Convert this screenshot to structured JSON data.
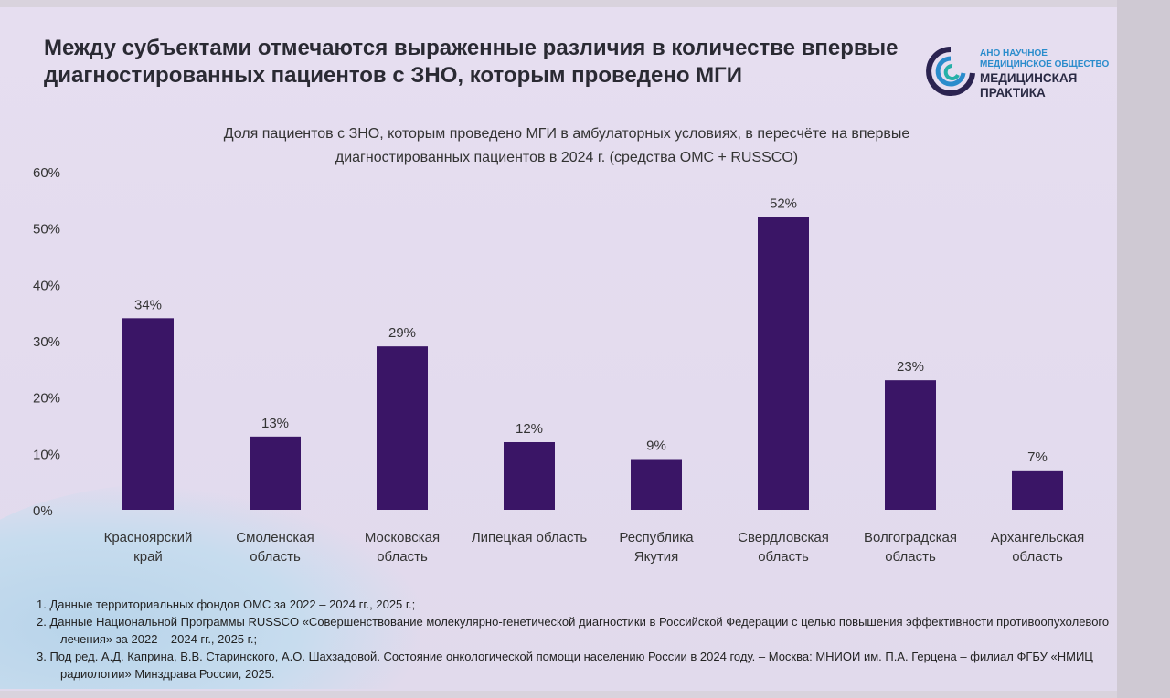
{
  "title": "Между субъектами отмечаются выраженные различия в количестве впервые диагностированных пациентов с ЗНО, которым проведено МГИ",
  "logo": {
    "line1": "АНО НАУЧНОЕ",
    "line2": "МЕДИЦИНСКОЕ ОБЩЕСТВО",
    "line3": "МЕДИЦИНСКАЯ",
    "line4": "ПРАКТИКА"
  },
  "chart_data": {
    "type": "bar",
    "title": "Доля пациентов с ЗНО, которым проведено МГИ в амбулаторных условиях, в пересчёте на впервые диагностированных пациентов в 2024 г.  (средства ОМС + RUSSCO)",
    "title_line1": "Доля пациентов с ЗНО, которым проведено МГИ в амбулаторных условиях, в пересчёте на впервые",
    "title_line2": "диагностированных пациентов в 2024 г.  (средства ОМС + RUSSCO)",
    "categories": [
      [
        "Красноярский",
        "край"
      ],
      [
        "Смоленская",
        "область"
      ],
      [
        "Московская",
        "область"
      ],
      [
        "Липецкая область"
      ],
      [
        "Республика",
        "Якутия"
      ],
      [
        "Свердловская",
        "область"
      ],
      [
        "Волгоградская",
        "область"
      ],
      [
        "Архангельская",
        "область"
      ]
    ],
    "values": [
      34,
      13,
      29,
      12,
      9,
      52,
      23,
      7
    ],
    "data_labels": [
      "34%",
      "13%",
      "29%",
      "12%",
      "9%",
      "52%",
      "23%",
      "7%"
    ],
    "yticks": [
      "0%",
      "10%",
      "20%",
      "30%",
      "40%",
      "50%",
      "60%"
    ],
    "ylim": [
      0,
      60
    ],
    "bar_color": "#3a1566",
    "grid": false,
    "legend": "none"
  },
  "footnotes": [
    "1.  Данные территориальных фондов ОМС за 2022 – 2024 гг., 2025 г.;",
    "2.  Данные Национальной Программы RUSSCO «Совершенствование молекулярно-генетической диагностики в Российской Федерации с целью повышения эффективности противоопухолевого лечения» за 2022 – 2024 гг., 2025 г.;",
    "3.  Под ред. А.Д. Каприна, В.В. Старинского, А.О. Шахзадовой. Состояние онкологической помощи населению России в 2024 году. – Москва: МНИОИ им. П.А. Герцена – филиал ФГБУ «НМИЦ радиологии» Минздрава России, 2025."
  ]
}
